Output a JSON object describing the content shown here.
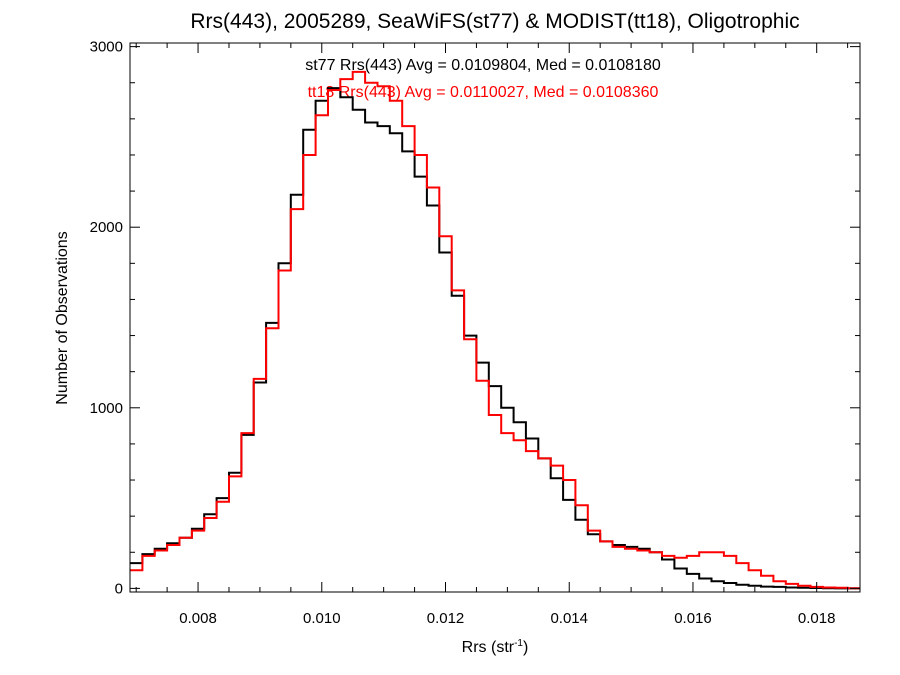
{
  "chart_data": {
    "type": "line",
    "style": "step-histogram",
    "title": "Rrs(443), 2005289, SeaWiFS(st77) & MODIST(tt18), Oligotrophic",
    "xlabel": "Rrs (str",
    "xlabel_sup": "-1",
    "xlabel_close": ")",
    "ylabel": "Number of Observations",
    "xlim": [
      0.0069,
      0.0187
    ],
    "ylim": [
      -20,
      3020
    ],
    "x_ticks": [
      0.008,
      0.01,
      0.012,
      0.014,
      0.016,
      0.018
    ],
    "x_tick_labels": [
      "0.008",
      "0.010",
      "0.012",
      "0.014",
      "0.016",
      "0.018"
    ],
    "y_ticks": [
      0,
      1000,
      2000,
      3000
    ],
    "y_tick_labels": [
      "0",
      "1000",
      "2000",
      "3000"
    ],
    "grid": false,
    "annotations": [
      {
        "text": "st77 Rrs(443) Avg = 0.0109804, Med = 0.0108180",
        "color": "#000000"
      },
      {
        "text": "tt18 Rrs(443) Avg = 0.0110027, Med = 0.0108360",
        "color": "#ff0000"
      }
    ],
    "series": [
      {
        "color": "#000000",
        "x": [
          0.0069,
          0.0071,
          0.0073,
          0.0075,
          0.0077,
          0.0079,
          0.0081,
          0.0083,
          0.0085,
          0.0087,
          0.0089,
          0.0091,
          0.0093,
          0.0095,
          0.0097,
          0.0099,
          0.0101,
          0.0103,
          0.0105,
          0.0107,
          0.0109,
          0.0111,
          0.0113,
          0.0115,
          0.0117,
          0.0119,
          0.0121,
          0.0123,
          0.0125,
          0.0127,
          0.0129,
          0.0131,
          0.0133,
          0.0135,
          0.0137,
          0.0139,
          0.0141,
          0.0143,
          0.0145,
          0.0147,
          0.0149,
          0.0151,
          0.0153,
          0.0155,
          0.0157,
          0.0159,
          0.0161,
          0.0163,
          0.0165,
          0.0167,
          0.0169,
          0.0171,
          0.0173,
          0.0175,
          0.0177,
          0.0179,
          0.0181,
          0.0183,
          0.0185,
          0.0187
        ],
        "y": [
          140,
          190,
          220,
          250,
          280,
          330,
          410,
          500,
          640,
          850,
          1140,
          1470,
          1800,
          2180,
          2540,
          2700,
          2770,
          2720,
          2650,
          2580,
          2560,
          2520,
          2420,
          2280,
          2120,
          1860,
          1620,
          1400,
          1250,
          1120,
          1000,
          920,
          830,
          720,
          610,
          490,
          380,
          300,
          260,
          240,
          230,
          220,
          200,
          160,
          110,
          80,
          55,
          40,
          30,
          20,
          15,
          10,
          8,
          5,
          3,
          2,
          1,
          0,
          0,
          0
        ]
      },
      {
        "color": "#ff0000",
        "x": [
          0.0069,
          0.0071,
          0.0073,
          0.0075,
          0.0077,
          0.0079,
          0.0081,
          0.0083,
          0.0085,
          0.0087,
          0.0089,
          0.0091,
          0.0093,
          0.0095,
          0.0097,
          0.0099,
          0.0101,
          0.0103,
          0.0105,
          0.0107,
          0.0109,
          0.0111,
          0.0113,
          0.0115,
          0.0117,
          0.0119,
          0.0121,
          0.0123,
          0.0125,
          0.0127,
          0.0129,
          0.0131,
          0.0133,
          0.0135,
          0.0137,
          0.0139,
          0.0141,
          0.0143,
          0.0145,
          0.0147,
          0.0149,
          0.0151,
          0.0153,
          0.0155,
          0.0157,
          0.0159,
          0.0161,
          0.0163,
          0.0165,
          0.0167,
          0.0169,
          0.0171,
          0.0173,
          0.0175,
          0.0177,
          0.0179,
          0.0181,
          0.0183,
          0.0185,
          0.0187
        ],
        "y": [
          100,
          180,
          210,
          240,
          280,
          320,
          390,
          480,
          620,
          860,
          1160,
          1440,
          1760,
          2100,
          2400,
          2620,
          2760,
          2820,
          2860,
          2800,
          2780,
          2700,
          2560,
          2400,
          2220,
          1950,
          1650,
          1380,
          1150,
          960,
          860,
          820,
          760,
          720,
          680,
          600,
          460,
          320,
          260,
          230,
          220,
          210,
          200,
          180,
          170,
          180,
          200,
          200,
          180,
          140,
          100,
          70,
          40,
          25,
          15,
          8,
          5,
          3,
          1,
          0
        ]
      }
    ]
  }
}
